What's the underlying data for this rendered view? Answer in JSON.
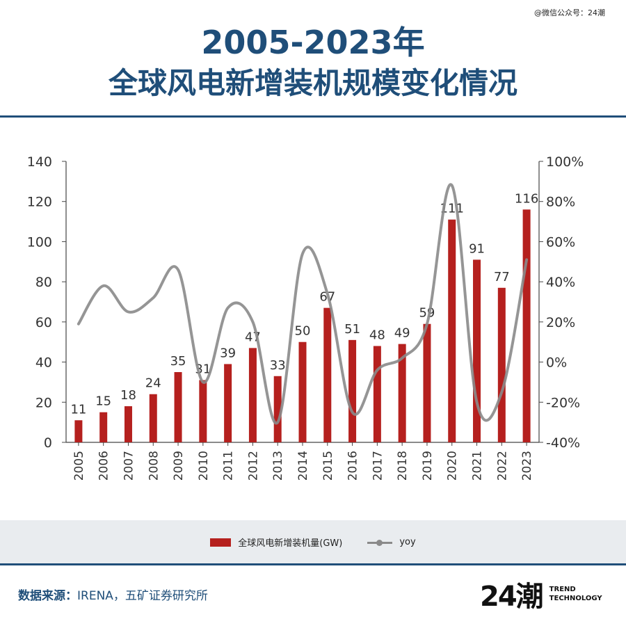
{
  "watermark": "@微信公众号：24潮",
  "title": {
    "line1": "2005-2023年",
    "line2": "全球风电新增装机规模变化情况"
  },
  "chart_data": {
    "type": "bar",
    "categories": [
      "2005",
      "2006",
      "2007",
      "2008",
      "2009",
      "2010",
      "2011",
      "2012",
      "2013",
      "2014",
      "2015",
      "2016",
      "2017",
      "2018",
      "2019",
      "2020",
      "2021",
      "2022",
      "2023"
    ],
    "series": [
      {
        "name": "全球风电新增装机量(GW)",
        "type": "bar",
        "axis": "left",
        "color": "#b5201e",
        "values": [
          11,
          15,
          18,
          24,
          35,
          31,
          39,
          47,
          33,
          50,
          67,
          51,
          48,
          49,
          59,
          111,
          91,
          77,
          116
        ],
        "labels": [
          "11",
          "15",
          "18",
          "24",
          "35",
          "31",
          "39",
          "47",
          "33",
          "50",
          "67",
          "51",
          "48",
          "49",
          "59",
          "111",
          "91",
          "77",
          "116"
        ]
      },
      {
        "name": "yoy",
        "type": "line",
        "axis": "right",
        "color": "#8a8a8a",
        "values": [
          0.19,
          0.38,
          0.25,
          0.32,
          0.46,
          -0.1,
          0.27,
          0.2,
          -0.3,
          0.54,
          0.34,
          -0.25,
          -0.04,
          0.02,
          0.19,
          0.88,
          -0.2,
          -0.15,
          0.51
        ]
      }
    ],
    "left_axis": {
      "min": 0,
      "max": 140,
      "ticks": [
        0,
        20,
        40,
        60,
        80,
        100,
        120,
        140
      ]
    },
    "right_axis": {
      "min": -0.4,
      "max": 1.0,
      "ticks": [
        -0.4,
        -0.2,
        0,
        0.2,
        0.4,
        0.6,
        0.8,
        1.0
      ],
      "tick_labels": [
        "-40%",
        "-20%",
        "0%",
        "20%",
        "40%",
        "60%",
        "80%",
        "100%"
      ]
    },
    "legend_position": "bottom",
    "grid": false
  },
  "source": {
    "label": "数据来源：",
    "text": "IRENA，五矿证券研究所"
  },
  "logo": {
    "mark": "24潮",
    "line1": "TREND",
    "line2": "TECHNOLOGY"
  }
}
